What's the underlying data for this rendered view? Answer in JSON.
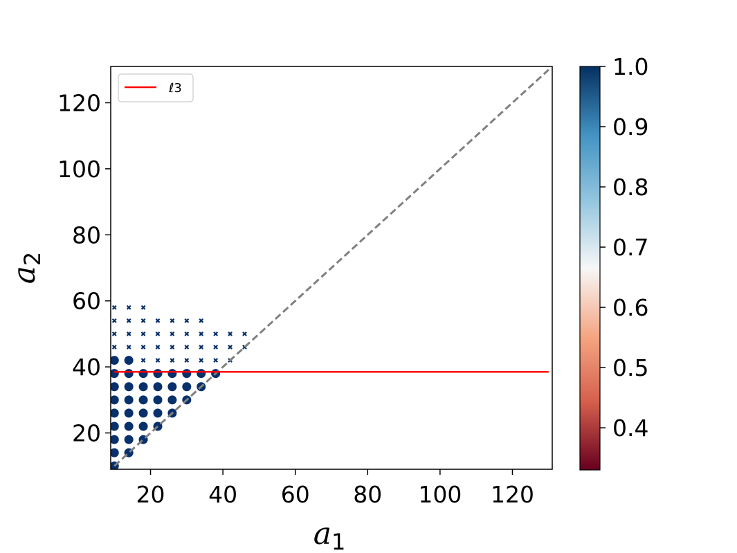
{
  "chart_data": {
    "type": "scatter",
    "xlabel": "a",
    "xlabel_sub": "1",
    "ylabel": "a",
    "ylabel_sub": "2",
    "xlim": [
      9,
      131
    ],
    "ylim": [
      9,
      131
    ],
    "xticks": [
      20,
      40,
      60,
      80,
      100,
      120
    ],
    "yticks": [
      20,
      40,
      60,
      80,
      100,
      120
    ],
    "grid": false,
    "legend": {
      "placement": "upper-left",
      "entries": [
        {
          "label": "ℓ3",
          "color": "#ff0000"
        }
      ]
    },
    "reference_line": {
      "style": "dashed",
      "color": "#808080",
      "from": [
        10,
        10
      ],
      "to": [
        130,
        130
      ]
    },
    "horizontal_line": {
      "label": "ℓ3",
      "y": 38.5,
      "x_start": 10,
      "x_end": 130,
      "color": "#ff0000"
    },
    "point_color": "#08306b",
    "colorbar": {
      "min": 0.33,
      "max": 1.0,
      "ticks": [
        0.4,
        0.5,
        0.6,
        0.7,
        0.8,
        0.9,
        1.0
      ],
      "tick_labels": [
        "0.4",
        "0.5",
        "0.6",
        "0.7",
        "0.8",
        "0.9",
        "1.0"
      ],
      "colormap": "RdBu",
      "stops": [
        "#67001f",
        "#d6604d",
        "#f4a582",
        "#f7f7f7",
        "#92c5de",
        "#4393c3",
        "#053061"
      ]
    },
    "series_large": {
      "marker": "circle",
      "points": [
        [
          10,
          10
        ],
        [
          10,
          14
        ],
        [
          10,
          18
        ],
        [
          10,
          22
        ],
        [
          10,
          26
        ],
        [
          10,
          30
        ],
        [
          10,
          34
        ],
        [
          10,
          38
        ],
        [
          10,
          42
        ],
        [
          14,
          14
        ],
        [
          14,
          18
        ],
        [
          14,
          22
        ],
        [
          14,
          26
        ],
        [
          14,
          30
        ],
        [
          14,
          34
        ],
        [
          14,
          38
        ],
        [
          14,
          42
        ],
        [
          18,
          18
        ],
        [
          18,
          22
        ],
        [
          18,
          26
        ],
        [
          18,
          30
        ],
        [
          18,
          34
        ],
        [
          18,
          38
        ],
        [
          22,
          22
        ],
        [
          22,
          26
        ],
        [
          22,
          30
        ],
        [
          22,
          34
        ],
        [
          22,
          38
        ],
        [
          26,
          26
        ],
        [
          26,
          30
        ],
        [
          26,
          34
        ],
        [
          26,
          38
        ],
        [
          30,
          30
        ],
        [
          30,
          34
        ],
        [
          30,
          38
        ],
        [
          34,
          34
        ],
        [
          34,
          38
        ],
        [
          38,
          38
        ]
      ]
    },
    "series_small": {
      "marker": "x",
      "points": [
        [
          10,
          46
        ],
        [
          10,
          50
        ],
        [
          10,
          54
        ],
        [
          10,
          58
        ],
        [
          14,
          46
        ],
        [
          14,
          50
        ],
        [
          14,
          54
        ],
        [
          14,
          58
        ],
        [
          18,
          42
        ],
        [
          18,
          46
        ],
        [
          18,
          50
        ],
        [
          18,
          54
        ],
        [
          18,
          58
        ],
        [
          22,
          42
        ],
        [
          22,
          46
        ],
        [
          22,
          50
        ],
        [
          22,
          54
        ],
        [
          26,
          42
        ],
        [
          26,
          46
        ],
        [
          26,
          50
        ],
        [
          26,
          54
        ],
        [
          30,
          42
        ],
        [
          30,
          46
        ],
        [
          30,
          50
        ],
        [
          30,
          54
        ],
        [
          34,
          42
        ],
        [
          34,
          46
        ],
        [
          34,
          50
        ],
        [
          34,
          54
        ],
        [
          38,
          42
        ],
        [
          38,
          46
        ],
        [
          38,
          50
        ],
        [
          42,
          42
        ],
        [
          42,
          46
        ],
        [
          42,
          50
        ],
        [
          46,
          46
        ],
        [
          46,
          50
        ]
      ]
    }
  }
}
